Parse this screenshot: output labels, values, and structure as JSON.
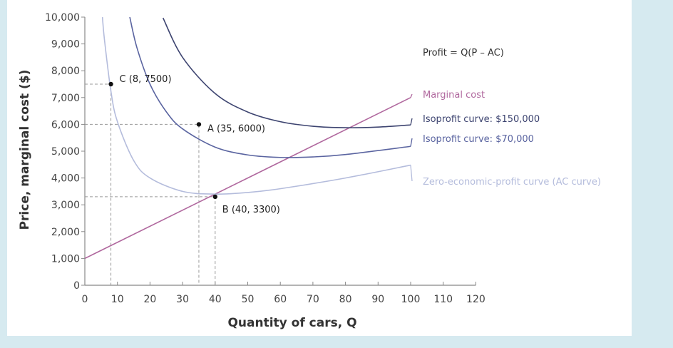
{
  "chart_data": {
    "type": "line",
    "xlabel": "Quantity of cars, Q",
    "ylabel": "Price, marginal cost ($)",
    "xlim": [
      0,
      120
    ],
    "ylim": [
      0,
      10000
    ],
    "xticks": [
      0,
      10,
      20,
      30,
      40,
      50,
      60,
      70,
      80,
      90,
      100,
      110,
      120
    ],
    "yticks": [
      0,
      1000,
      2000,
      3000,
      4000,
      5000,
      6000,
      7000,
      8000,
      9000,
      10000
    ],
    "ytick_labels": [
      "0",
      "1,000",
      "2,000",
      "3,000",
      "4,000",
      "5,000",
      "6,000",
      "7,000",
      "8,000",
      "9,000",
      "10,000"
    ],
    "grid": false,
    "annotation": "Profit = Q(P – AC)",
    "series": [
      {
        "name": "Marginal cost",
        "color": "#b0689e",
        "points": [
          [
            0,
            1000
          ],
          [
            100,
            7000
          ]
        ]
      },
      {
        "name": "Isoprofit curve: $150,000",
        "color": "#3d4470",
        "points": [
          [
            24,
            9970
          ],
          [
            30,
            8500
          ],
          [
            40,
            7150
          ],
          [
            50,
            6460
          ],
          [
            60,
            6100
          ],
          [
            70,
            5929
          ],
          [
            80,
            5875
          ],
          [
            90,
            5900
          ],
          [
            100,
            5980
          ]
        ]
      },
      {
        "name": "Isoprofit curve: $70,000",
        "color": "#5a64a0",
        "points": [
          [
            13.8,
            10000
          ],
          [
            16,
            8855
          ],
          [
            20,
            7500
          ],
          [
            25,
            6470
          ],
          [
            30,
            5833
          ],
          [
            40,
            5150
          ],
          [
            50,
            4860
          ],
          [
            60,
            4767
          ],
          [
            70,
            4786
          ],
          [
            80,
            4875
          ],
          [
            100,
            5180
          ]
        ]
      },
      {
        "name": "Zero-economic-profit curve (AC curve)",
        "color": "#b4bcdc",
        "points": [
          [
            5.4,
            10000
          ],
          [
            6,
            9180
          ],
          [
            8,
            7240
          ],
          [
            10,
            6100
          ],
          [
            15,
            4650
          ],
          [
            20,
            4000
          ],
          [
            30,
            3500
          ],
          [
            40,
            3400
          ],
          [
            50,
            3460
          ],
          [
            60,
            3600
          ],
          [
            80,
            4000
          ],
          [
            100,
            4480
          ]
        ]
      }
    ],
    "marked_points": [
      {
        "label": "C (8, 7500)",
        "x": 8,
        "y": 7500
      },
      {
        "label": "A (35, 6000)",
        "x": 35,
        "y": 6000
      },
      {
        "label": "B (40, 3300)",
        "x": 40,
        "y": 3300
      }
    ]
  }
}
